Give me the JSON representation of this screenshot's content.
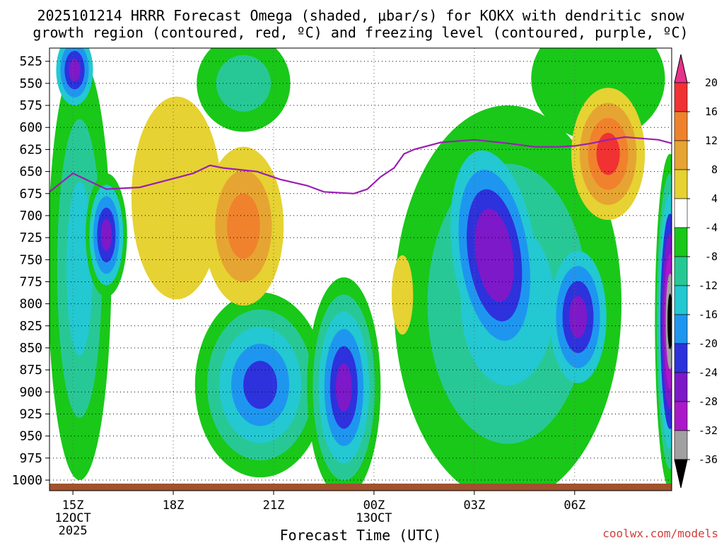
{
  "chart_data": {
    "type": "filled-contour",
    "title_line1": "2025101214 HRRR Forecast Omega (shaded, μbar/s) for KOKX with dendritic snow",
    "title_line2": "growth region (contoured, red, ºC) and freezing level (contoured, purple, ºC)",
    "xlabel": "Forecast Time (UTC)",
    "credit": "coolwx.com/models",
    "x_range_hours": [
      14.3,
      32.9
    ],
    "y_range_hPa": [
      510,
      1012
    ],
    "x_ticks": [
      {
        "hour": 15,
        "label": "15Z",
        "sub1": "12OCT",
        "sub2": "2025"
      },
      {
        "hour": 18,
        "label": "18Z",
        "sub1": "",
        "sub2": ""
      },
      {
        "hour": 21,
        "label": "21Z",
        "sub1": "",
        "sub2": ""
      },
      {
        "hour": 24,
        "label": "00Z",
        "sub1": "13OCT",
        "sub2": ""
      },
      {
        "hour": 27,
        "label": "03Z",
        "sub1": "",
        "sub2": ""
      },
      {
        "hour": 30,
        "label": "06Z",
        "sub1": "",
        "sub2": ""
      }
    ],
    "y_ticks": [
      "525",
      "550",
      "575",
      "600",
      "625",
      "650",
      "675",
      "700",
      "725",
      "750",
      "775",
      "800",
      "825",
      "850",
      "875",
      "900",
      "925",
      "950",
      "975",
      "1000"
    ],
    "colorbar": {
      "labels": [
        "20",
        "16",
        "12",
        "8",
        "4",
        "-4",
        "-8",
        "-12",
        "-16",
        "-20",
        "-24",
        "-28",
        "-32",
        "-36"
      ],
      "levels": [
        {
          "from": 20,
          "to": 999,
          "color": "#e8328c"
        },
        {
          "from": 16,
          "to": 20,
          "color": "#f03232"
        },
        {
          "from": 12,
          "to": 16,
          "color": "#f0822d"
        },
        {
          "from": 8,
          "to": 12,
          "color": "#e6a532"
        },
        {
          "from": 4,
          "to": 8,
          "color": "#e6d232"
        },
        {
          "from": -4,
          "to": 4,
          "color": "#ffffff"
        },
        {
          "from": -8,
          "to": -4,
          "color": "#19c819"
        },
        {
          "from": -12,
          "to": -8,
          "color": "#28c896"
        },
        {
          "from": -16,
          "to": -12,
          "color": "#23c8d2"
        },
        {
          "from": -20,
          "to": -16,
          "color": "#1e96f0"
        },
        {
          "from": -24,
          "to": -20,
          "color": "#2d32dc"
        },
        {
          "from": -28,
          "to": -24,
          "color": "#7d19c8"
        },
        {
          "from": -32,
          "to": -28,
          "color": "#aa19c8"
        },
        {
          "from": -36,
          "to": -32,
          "color": "#a0a0a0"
        },
        {
          "from": -999,
          "to": -36,
          "color": "#000000"
        }
      ]
    },
    "freezing_level": {
      "color": "#9b1eb4",
      "points": [
        [
          14.3,
          673
        ],
        [
          15.0,
          652
        ],
        [
          16.0,
          670
        ],
        [
          17.0,
          668
        ],
        [
          18.0,
          658
        ],
        [
          18.6,
          652
        ],
        [
          19.1,
          643
        ],
        [
          19.5,
          646
        ],
        [
          20.5,
          650
        ],
        [
          21.2,
          659
        ],
        [
          22.0,
          666
        ],
        [
          22.5,
          673
        ],
        [
          23.4,
          675
        ],
        [
          23.8,
          670
        ],
        [
          24.2,
          656
        ],
        [
          24.6,
          646
        ],
        [
          24.9,
          630
        ],
        [
          25.2,
          625
        ],
        [
          26.0,
          617
        ],
        [
          27.0,
          614
        ],
        [
          28.0,
          618
        ],
        [
          28.8,
          622
        ],
        [
          29.5,
          622
        ],
        [
          30.0,
          621
        ],
        [
          30.5,
          618
        ],
        [
          31.0,
          614
        ],
        [
          31.5,
          611
        ],
        [
          32.5,
          614
        ],
        [
          32.9,
          618
        ]
      ]
    },
    "features": [
      {
        "name": "omega-ascent-column-15z",
        "h": 15.2,
        "p": 760,
        "rx": 0.95,
        "ry": 240,
        "levels": [
          -6,
          -10,
          -14
        ],
        "rot": 0
      },
      {
        "name": "omega-ascent-core-15z-upper",
        "h": 15.05,
        "p": 535,
        "rx": 0.55,
        "ry": 40,
        "levels": [
          -16,
          -20,
          -24,
          -26
        ],
        "rot": 0
      },
      {
        "name": "omega-ascent-core-16z",
        "h": 16.0,
        "p": 722,
        "rx": 0.62,
        "ry": 70,
        "levels": [
          -8,
          -14,
          -18,
          -22,
          -25
        ],
        "rot": 0
      },
      {
        "name": "omega-ascent-upper-20z",
        "h": 20.1,
        "p": 550,
        "rx": 1.4,
        "ry": 55,
        "levels": [
          -6,
          -10
        ],
        "rot": 0
      },
      {
        "name": "omega-ascent-lower-21z",
        "h": 20.6,
        "p": 892,
        "rx": 1.95,
        "ry": 105,
        "levels": [
          -6,
          -10,
          -14,
          -18,
          -21
        ],
        "rot": 0
      },
      {
        "name": "omega-ascent-lower-2330z",
        "h": 23.1,
        "p": 895,
        "rx": 1.1,
        "ry": 125,
        "levels": [
          -6,
          -10,
          -14,
          -18,
          -22,
          -26
        ],
        "rot": 0
      },
      {
        "name": "omega-ascent-broad-03z",
        "h": 28.0,
        "p": 800,
        "rx": 3.4,
        "ry": 225,
        "levels": [
          -6,
          -10,
          -14
        ],
        "rot": 0
      },
      {
        "name": "omega-ascent-core-04z",
        "h": 27.6,
        "p": 745,
        "rx": 1.25,
        "ry": 120,
        "levels": [
          -14,
          -18,
          -22,
          -25,
          -28
        ],
        "rot": -8
      },
      {
        "name": "omega-ascent-core-06z",
        "h": 30.1,
        "p": 815,
        "rx": 0.85,
        "ry": 75,
        "levels": [
          -14,
          -18,
          -22,
          -25
        ],
        "rot": 0
      },
      {
        "name": "omega-ascent-edge-08z",
        "h": 32.85,
        "p": 820,
        "rx": 0.45,
        "ry": 190,
        "levels": [
          -6,
          -10,
          -16,
          -22,
          -27,
          -31,
          -34,
          -37
        ],
        "rot": 0
      },
      {
        "name": "omega-ascent-upper-0630z",
        "h": 30.7,
        "p": 545,
        "rx": 2.0,
        "ry": 70,
        "levels": [
          -6
        ],
        "rot": 0
      },
      {
        "name": "omega-descent-18z",
        "h": 18.1,
        "p": 680,
        "rx": 1.35,
        "ry": 115,
        "levels": [
          5
        ],
        "rot": 0
      },
      {
        "name": "omega-descent-20z",
        "h": 20.1,
        "p": 712,
        "rx": 1.2,
        "ry": 90,
        "levels": [
          5,
          9,
          13
        ],
        "rot": 0
      },
      {
        "name": "omega-descent-0030z",
        "h": 24.85,
        "p": 790,
        "rx": 0.32,
        "ry": 45,
        "levels": [
          5
        ],
        "rot": 0
      },
      {
        "name": "omega-descent-0645z",
        "h": 31.0,
        "p": 630,
        "rx": 1.1,
        "ry": 75,
        "levels": [
          5,
          9,
          13,
          17
        ],
        "rot": 0
      }
    ]
  }
}
